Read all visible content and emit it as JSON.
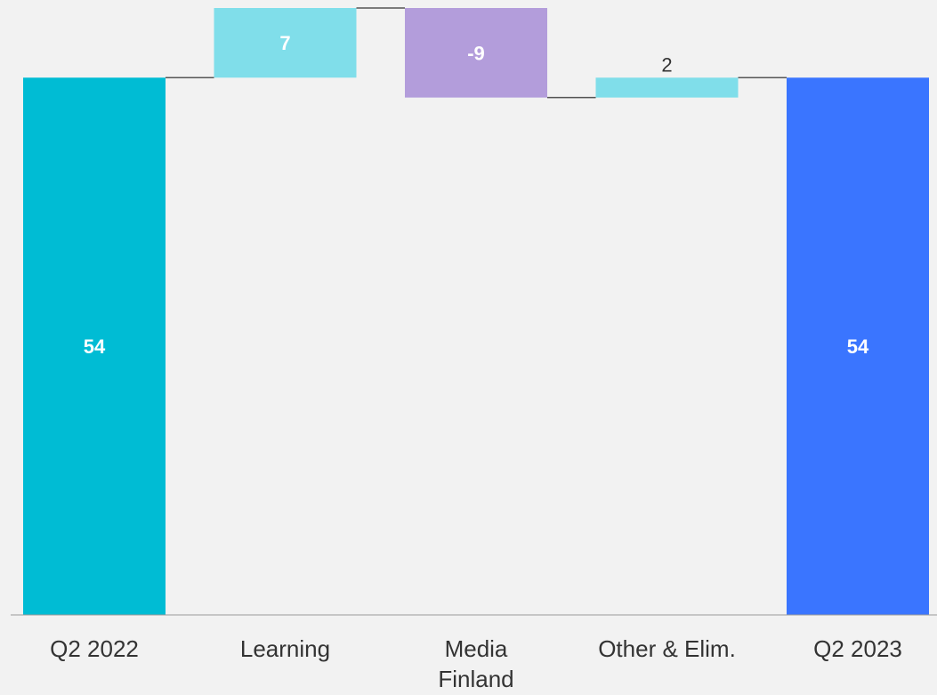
{
  "chart_data": {
    "type": "waterfall",
    "categories": [
      "Q2 2022",
      "Learning",
      "Media Finland",
      "Other & Elim.",
      "Q2 2023"
    ],
    "category_label_lines": [
      [
        "Q2 2022"
      ],
      [
        "Learning"
      ],
      [
        "Media",
        "Finland"
      ],
      [
        "Other & Elim."
      ],
      [
        "Q2 2023"
      ]
    ],
    "values": [
      54,
      7,
      -9,
      2,
      54
    ],
    "value_labels": [
      "54",
      "7",
      "-9",
      "2",
      "54"
    ],
    "kinds": [
      "total",
      "delta",
      "delta",
      "delta",
      "total"
    ],
    "ylim": [
      0,
      61
    ],
    "grid": false,
    "colors": {
      "start_total": "#00bcd4",
      "positive": "#80deea",
      "negative": "#b39ddb",
      "end_total": "#3a75ff",
      "connector": "#555555",
      "axis": "#999999",
      "background": "#f2f2f2"
    }
  }
}
